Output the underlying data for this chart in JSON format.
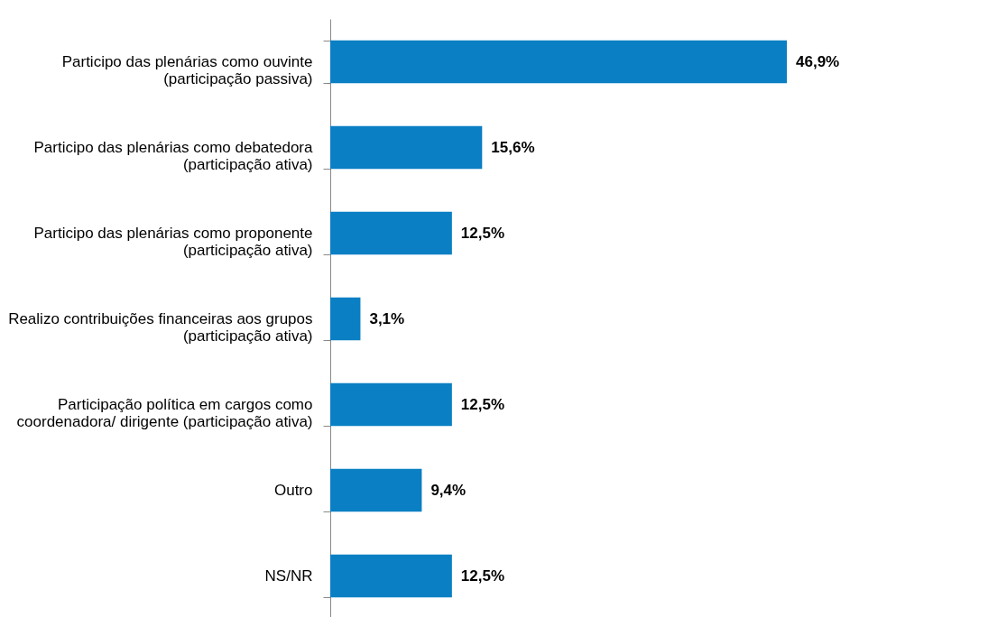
{
  "chart_data": {
    "type": "bar",
    "orientation": "horizontal",
    "categories": [
      "Participo das plenárias como ouvinte (participação passiva)",
      "Participo das plenárias como debatedora (participação ativa)",
      "Participo das plenárias como proponente (participação ativa)",
      "Realizo contribuições financeiras aos grupos (participação ativa)",
      "Participação política em cargos como coordenadora/ dirigente (participação ativa)",
      "Outro",
      "NS/NR"
    ],
    "values": [
      46.9,
      15.6,
      12.5,
      3.1,
      12.5,
      9.4,
      12.5
    ],
    "value_labels": [
      "46,9%",
      "15,6%",
      "12,5%",
      "3,1%",
      "12,5%",
      "9,4%",
      "12,5%"
    ],
    "color": "#0a7fc4",
    "tick_labels": "y"
  }
}
